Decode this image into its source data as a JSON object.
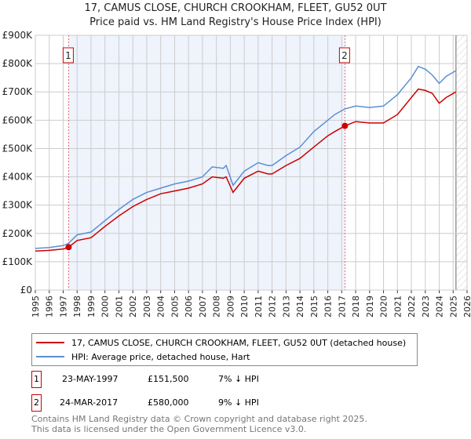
{
  "chart_data": {
    "type": "line",
    "title": "17, CAMUS CLOSE, CHURCH CROOKHAM, FLEET, GU52 0UT",
    "subtitle": "Price paid vs. HM Land Registry's House Price Index (HPI)",
    "xlim": [
      1995,
      2026
    ],
    "ylim": [
      0,
      900000
    ],
    "x_ticks": [
      "1995",
      "1996",
      "1997",
      "1998",
      "1999",
      "2000",
      "2001",
      "2002",
      "2003",
      "2004",
      "2005",
      "2006",
      "2007",
      "2008",
      "2009",
      "2010",
      "2011",
      "2012",
      "2013",
      "2014",
      "2015",
      "2016",
      "2017",
      "2018",
      "2019",
      "2020",
      "2021",
      "2022",
      "2023",
      "2024",
      "2025",
      "2026"
    ],
    "y_ticks": [
      {
        "v": 0,
        "label": "£0"
      },
      {
        "v": 100000,
        "label": "£100K"
      },
      {
        "v": 200000,
        "label": "£200K"
      },
      {
        "v": 300000,
        "label": "£300K"
      },
      {
        "v": 400000,
        "label": "£400K"
      },
      {
        "v": 500000,
        "label": "£500K"
      },
      {
        "v": 600000,
        "label": "£600K"
      },
      {
        "v": 700000,
        "label": "£700K"
      },
      {
        "v": 800000,
        "label": "£800K"
      },
      {
        "v": 900000,
        "label": "£900K"
      }
    ],
    "grid": true,
    "shaded_range": [
      1997.39,
      2017.23
    ],
    "forecast_hatch_from": 2025.2,
    "series": [
      {
        "name": "17, CAMUS CLOSE, CHURCH CROOKHAM, FLEET, GU52 0UT (detached house)",
        "color": "#cc0000",
        "x": [
          1995,
          1996,
          1997,
          1997.39,
          1998,
          1999,
          2000,
          2001,
          2002,
          2003,
          2004,
          2005,
          2006,
          2007,
          2007.7,
          2008.5,
          2008.7,
          2009.2,
          2010,
          2011,
          2011.7,
          2012,
          2013,
          2014,
          2015,
          2016,
          2016.5,
          2017.23,
          2018,
          2019,
          2020,
          2021,
          2022,
          2022.5,
          2023,
          2023.5,
          2024,
          2024.5,
          2025.2
        ],
        "y": [
          138000,
          140000,
          145000,
          151500,
          175000,
          185000,
          225000,
          262000,
          295000,
          320000,
          340000,
          350000,
          360000,
          375000,
          400000,
          395000,
          400000,
          345000,
          395000,
          420000,
          410000,
          410000,
          440000,
          465000,
          505000,
          545000,
          560000,
          580000,
          595000,
          590000,
          590000,
          620000,
          680000,
          710000,
          705000,
          695000,
          660000,
          680000,
          700000
        ]
      },
      {
        "name": "HPI: Average price, detached house, Hart",
        "color": "#5b8fd4",
        "x": [
          1995,
          1996,
          1997,
          1997.39,
          1998,
          1999,
          2000,
          2001,
          2002,
          2003,
          2004,
          2005,
          2006,
          2007,
          2007.7,
          2008.5,
          2008.7,
          2009.2,
          2010,
          2011,
          2011.7,
          2012,
          2013,
          2014,
          2015,
          2016,
          2016.5,
          2017.23,
          2018,
          2019,
          2020,
          2021,
          2022,
          2022.5,
          2023,
          2023.5,
          2024,
          2024.5,
          2025.2
        ],
        "y": [
          147000,
          150000,
          157000,
          165000,
          195000,
          205000,
          245000,
          285000,
          320000,
          345000,
          360000,
          375000,
          385000,
          400000,
          435000,
          430000,
          440000,
          370000,
          420000,
          450000,
          440000,
          440000,
          475000,
          505000,
          560000,
          600000,
          620000,
          640000,
          650000,
          645000,
          650000,
          690000,
          750000,
          790000,
          780000,
          760000,
          730000,
          755000,
          775000
        ]
      }
    ],
    "annotations": [
      {
        "label": "1",
        "x": 1997.39,
        "y": 151500
      },
      {
        "label": "2",
        "x": 2017.23,
        "y": 580000
      }
    ]
  },
  "legend": {
    "items": [
      "17, CAMUS CLOSE, CHURCH CROOKHAM, FLEET, GU52 0UT (detached house)",
      "HPI: Average price, detached house, Hart"
    ]
  },
  "transactions": [
    {
      "num": "1",
      "date": "23-MAY-1997",
      "price": "£151,500",
      "hpi": "7% ↓ HPI"
    },
    {
      "num": "2",
      "date": "24-MAR-2017",
      "price": "£580,000",
      "hpi": "9% ↓ HPI"
    }
  ],
  "footer": {
    "line1": "Contains HM Land Registry data © Crown copyright and database right 2025.",
    "line2": "This data is licensed under the Open Government Licence v3.0."
  }
}
